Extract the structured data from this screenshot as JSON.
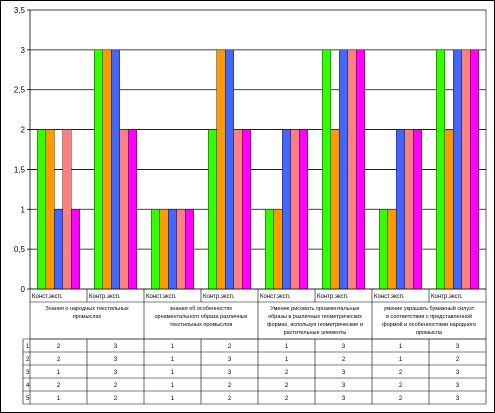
{
  "chart_data": {
    "type": "bar",
    "ylim": [
      0,
      3.5
    ],
    "y_ticks": [
      "0",
      "0,5",
      "1",
      "1,5",
      "2",
      "2,5",
      "3",
      "3,5"
    ],
    "grid": true,
    "groups": [
      {
        "name": "Знания о народных текстильных промыслах",
        "name_lines": [
          "Знания о народных текстильных",
          "промыслах"
        ]
      },
      {
        "name": "знания об особенностях орнаментального образа различных текстильных промыслов",
        "name_lines": [
          "знания  об особенностях",
          "орнаментального образа различных",
          "текстильных промыслов"
        ]
      },
      {
        "name": "Умение рисовать орнаментальные образы в различных геометрических формах, используя геометрические и растительные элементы",
        "name_lines": [
          "Умение рисовать орнаментальные",
          "образы в  различных геометрических",
          "формах, используя геометрические и",
          "растительные элементы"
        ]
      },
      {
        "name": "умение украшать бумажный силуэт в соответствии с представленной формой и особенностями народного промысла",
        "name_lines": [
          "умение украшать бумажный силуэт",
          "в соответствии с представленной",
          "формой и особенностями народного",
          "промысла"
        ]
      }
    ],
    "categories": [
      "Конст.эксп.",
      "Контр.эксп.",
      "Конст.эксп.",
      "Контр.эксп.",
      "Конст.эксп.",
      "Контр.эксп.",
      "Конст.эксп.",
      "Контр.эксп."
    ],
    "series": [
      {
        "name": "1",
        "color": "#ff66cc",
        "values": [
          2,
          3,
          1,
          2,
          1,
          3,
          1,
          3
        ]
      },
      {
        "name": "2",
        "color": "#ff8c00",
        "values": [
          2,
          3,
          1,
          3,
          1,
          2,
          1,
          2
        ]
      },
      {
        "name": "3",
        "color": "#6666ff",
        "values": [
          1,
          3,
          1,
          3,
          2,
          3,
          2,
          3
        ]
      },
      {
        "name": "4",
        "color": "#ff7f7f",
        "values": [
          2,
          2,
          1,
          2,
          2,
          3,
          2,
          3
        ]
      },
      {
        "name": "5",
        "color": "#ff00ff",
        "values": [
          1,
          2,
          1,
          2,
          2,
          3,
          2,
          3
        ]
      }
    ]
  },
  "bar_colors": [
    "#33ff00",
    "#ff9900",
    "#4466ff",
    "#ff7f80",
    "#ff00ff"
  ],
  "bar_values": [
    [
      2,
      2,
      1,
      2,
      1
    ],
    [
      3,
      3,
      3,
      2,
      2
    ],
    [
      1,
      1,
      1,
      1,
      1
    ],
    [
      2,
      3,
      3,
      2,
      2
    ],
    [
      1,
      1,
      2,
      2,
      2
    ],
    [
      3,
      2,
      3,
      3,
      3
    ],
    [
      1,
      1,
      2,
      2,
      2
    ],
    [
      3,
      2,
      3,
      3,
      3
    ]
  ]
}
